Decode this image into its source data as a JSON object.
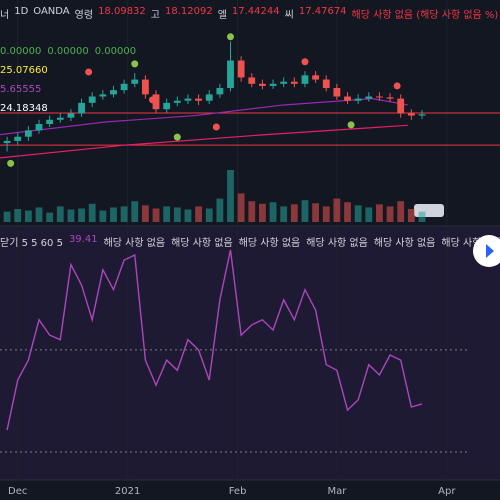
{
  "header": {
    "symbol": "너",
    "interval": "1D",
    "exchange": "OANDA",
    "ohlc": [
      {
        "label": "영령",
        "value": "18.09832"
      },
      {
        "label": "고",
        "value": "18.12092"
      },
      {
        "label": "엘",
        "value": "17.44244"
      },
      {
        "label": "씨",
        "value": "17.47674"
      }
    ],
    "change": "해당 사항 없음 (해당 사항 없음 %)"
  },
  "chart_data": [
    {
      "type": "candlestick",
      "x": [
        -3,
        0,
        3,
        6,
        9,
        12,
        15,
        18,
        21,
        24,
        27,
        30,
        33,
        36,
        39,
        42,
        45,
        48,
        51,
        54,
        57,
        60,
        63,
        66,
        69,
        72,
        75,
        78,
        81,
        84,
        87,
        90,
        93,
        96,
        99,
        102,
        105,
        108,
        111,
        114
      ],
      "open": [
        23.4,
        23.45,
        23.55,
        23.7,
        23.85,
        23.95,
        24.0,
        24.1,
        24.35,
        24.5,
        24.55,
        24.65,
        24.8,
        24.9,
        24.55,
        24.2,
        24.35,
        24.4,
        24.45,
        24.4,
        24.55,
        24.7,
        25.35,
        24.95,
        24.8,
        24.75,
        24.8,
        24.85,
        24.8,
        25.0,
        24.9,
        24.7,
        24.5,
        24.4,
        24.45,
        24.5,
        24.48,
        24.45,
        24.1,
        24.05
      ],
      "high": [
        23.55,
        23.65,
        23.8,
        23.95,
        24.05,
        24.1,
        24.2,
        24.45,
        24.6,
        24.65,
        24.75,
        24.9,
        25.05,
        25.0,
        24.65,
        24.45,
        24.5,
        24.55,
        24.55,
        24.65,
        24.8,
        25.8,
        25.45,
        25.05,
        24.9,
        24.9,
        24.95,
        24.95,
        25.1,
        25.1,
        25.0,
        24.8,
        24.6,
        24.55,
        24.6,
        24.6,
        24.58,
        24.55,
        24.2,
        24.18
      ],
      "low": [
        23.2,
        23.35,
        23.45,
        23.62,
        23.78,
        23.88,
        23.92,
        24.02,
        24.25,
        24.42,
        24.48,
        24.57,
        24.72,
        24.45,
        24.1,
        24.12,
        24.27,
        24.32,
        24.3,
        24.32,
        24.47,
        24.62,
        24.85,
        24.72,
        24.67,
        24.68,
        24.72,
        24.72,
        24.72,
        24.82,
        24.62,
        24.42,
        24.32,
        24.32,
        24.38,
        24.4,
        24.37,
        24.0,
        23.95,
        23.97
      ],
      "close": [
        23.45,
        23.55,
        23.7,
        23.85,
        23.95,
        24.0,
        24.1,
        24.35,
        24.5,
        24.55,
        24.65,
        24.8,
        24.9,
        24.55,
        24.2,
        24.35,
        24.4,
        24.45,
        24.4,
        24.55,
        24.7,
        25.35,
        24.95,
        24.8,
        24.75,
        24.8,
        24.85,
        24.8,
        25.0,
        24.9,
        24.7,
        24.5,
        24.4,
        24.45,
        24.5,
        24.48,
        24.45,
        24.1,
        24.05,
        24.08
      ],
      "up_color": "#26a69a",
      "down_color": "#ef5350",
      "xlim": [
        -5,
        136
      ],
      "xticks": [
        {
          "value": 0,
          "label": "Dec"
        },
        {
          "value": 31,
          "label": "2021"
        },
        {
          "value": 62,
          "label": "Feb"
        },
        {
          "value": 90,
          "label": "Mar"
        },
        {
          "value": 121,
          "label": "Apr"
        }
      ],
      "ylim": [
        23,
        26
      ],
      "ma": [
        {
          "color": "#9c27b0",
          "x": [
            -5,
            25,
            50,
            75,
            100,
            110
          ],
          "values": [
            23.6,
            23.9,
            24.05,
            24.3,
            24.45,
            24.3
          ]
        },
        {
          "color": "#e91e63",
          "x": [
            -5,
            30,
            70,
            110
          ],
          "values": [
            23.05,
            23.35,
            23.6,
            23.82
          ]
        }
      ],
      "hlines": [
        {
          "value": 24.11,
          "color": "#f23645"
        },
        {
          "value": 23.35,
          "color": "#f23645"
        }
      ],
      "markers": [
        {
          "x": -2,
          "y": 22.92,
          "color": "#8bc34a"
        },
        {
          "x": 20,
          "y": 25.08,
          "color": "#ef5350"
        },
        {
          "x": 33,
          "y": 25.27,
          "color": "#8bc34a"
        },
        {
          "x": 38,
          "y": 24.42,
          "color": "#ef5350"
        },
        {
          "x": 45,
          "y": 23.54,
          "color": "#8bc34a"
        },
        {
          "x": 56,
          "y": 23.78,
          "color": "#ef5350"
        },
        {
          "x": 60,
          "y": 25.91,
          "color": "#8bc34a"
        },
        {
          "x": 81,
          "y": 25.32,
          "color": "#ef5350"
        },
        {
          "x": 94,
          "y": 23.83,
          "color": "#8bc34a"
        },
        {
          "x": 107,
          "y": 24.75,
          "color": "#ef5350"
        }
      ],
      "indicators": [
        {
          "values": [
            "0.00000",
            "0.00000",
            "0.00000"
          ],
          "color": "#4caf50"
        },
        {
          "values": [
            "25.07660"
          ],
          "color": "#ffeb3b"
        },
        {
          "values": [
            "5.65555"
          ],
          "color": "#ab47bc"
        },
        {
          "values": [
            "24.18348"
          ],
          "color": "#ffffff"
        }
      ]
    },
    {
      "type": "bar",
      "values": [
        20,
        25,
        22,
        28,
        18,
        30,
        24,
        26,
        35,
        22,
        28,
        30,
        40,
        32,
        26,
        30,
        28,
        24,
        30,
        26,
        45,
        100,
        55,
        40,
        35,
        38,
        30,
        34,
        42,
        36,
        30,
        45,
        38,
        32,
        28,
        34,
        30,
        40,
        25,
        20
      ],
      "ylim": [
        0,
        100
      ]
    },
    {
      "type": "line",
      "title": "닫기 5 5 60 5",
      "color": "#ab47bc",
      "values": [
        34.3,
        44.1,
        48,
        55.9,
        52.9,
        52,
        66.7,
        62.7,
        55.9,
        65.7,
        61.8,
        67.6,
        68.6,
        48,
        43.1,
        48,
        46,
        52,
        50,
        44.1,
        59.8,
        69.6,
        52.9,
        54.9,
        55.9,
        53.9,
        59.8,
        55.9,
        61.8,
        57.8,
        47.1,
        46,
        38.2,
        40.2,
        47.1,
        45.1,
        49,
        48,
        38.8,
        39.41
      ],
      "ylim": [
        24.5,
        73.5
      ],
      "levels": [
        50,
        30
      ],
      "notes": [
        "해당 사항 없음",
        "해당 사항 없음",
        "해당 사항 없음",
        "해당 사항 없음",
        "해당 사항 없음",
        "해당 사항 없음"
      ]
    }
  ]
}
